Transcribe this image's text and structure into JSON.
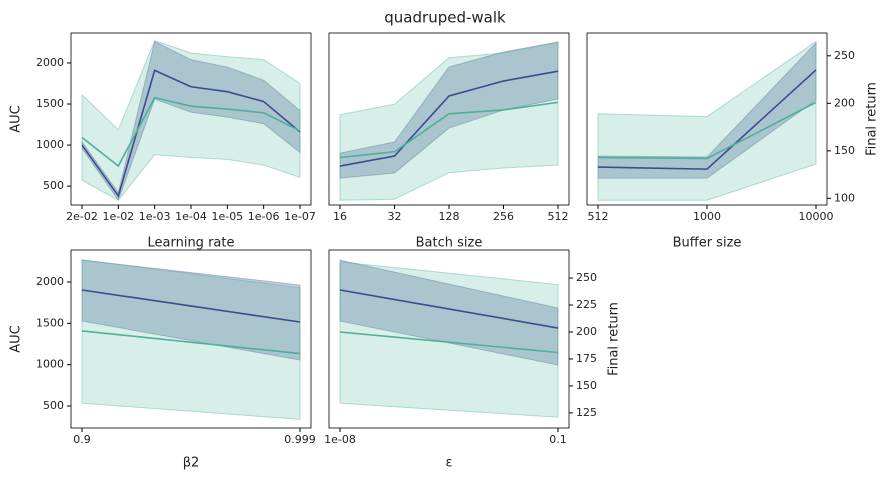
{
  "title": "quadruped-walk",
  "chart_data": [
    {
      "type": "line",
      "xlabel": "Learning rate",
      "ylabel": "AUC",
      "categories": [
        "2e-02",
        "1e-02",
        "1e-03",
        "1e-04",
        "1e-05",
        "1e-06",
        "1e-07"
      ],
      "ylim": [
        270,
        2365
      ],
      "yticks": [
        500,
        1000,
        1500,
        2000
      ],
      "y2lim": [
        93,
        274
      ],
      "series": [
        {
          "color": "#3e4a8f",
          "band_color": "#5a6a9a",
          "values": [
            1000,
            380,
            1910,
            1710,
            1650,
            1530,
            1160
          ],
          "lower": [
            960,
            330,
            1560,
            1400,
            1340,
            1260,
            910
          ],
          "upper": [
            1040,
            420,
            2260,
            2040,
            1950,
            1790,
            1420
          ]
        },
        {
          "axis": "y2",
          "color": "#4cb09a",
          "band_color": "#4cb09a",
          "values": [
            164,
            134,
            206,
            197,
            194,
            190,
            171
          ],
          "lower": [
            119,
            98,
            146,
            143,
            141,
            135,
            122
          ],
          "upper": [
            209,
            172,
            266,
            253,
            249,
            246,
            221
          ]
        }
      ]
    },
    {
      "type": "line",
      "xlabel": "Batch size",
      "categories": [
        "16",
        "32",
        "128",
        "256",
        "512"
      ],
      "ylim": [
        270,
        2365
      ],
      "y2lim": [
        93,
        274
      ],
      "series": [
        {
          "color": "#3e4a8f",
          "band_color": "#5a6a9a",
          "values": [
            744,
            866,
            1598,
            1780,
            1900
          ],
          "lower": [
            598,
            659,
            1207,
            1427,
            1561
          ],
          "upper": [
            902,
            1037,
            1951,
            2134,
            2256
          ]
        },
        {
          "axis": "y2",
          "color": "#4cb09a",
          "band_color": "#4cb09a",
          "values": [
            143,
            149,
            189,
            193,
            201
          ],
          "lower": [
            98,
            99,
            127,
            132,
            135
          ],
          "upper": [
            188,
            199,
            248,
            253,
            264
          ]
        }
      ]
    },
    {
      "type": "line",
      "xlabel": "Buffer size",
      "y2label": "Final return",
      "categories": [
        "512",
        "1000",
        "10000"
      ],
      "ylim": [
        270,
        2365
      ],
      "y2lim": [
        93,
        274
      ],
      "y2ticks": [
        100,
        150,
        200,
        250
      ],
      "series": [
        {
          "color": "#3e4a8f",
          "band_color": "#5a6a9a",
          "values": [
            732,
            707,
            1915
          ],
          "lower": [
            598,
            598,
            1549
          ],
          "upper": [
            866,
            854,
            2244
          ]
        },
        {
          "axis": "y2",
          "color": "#4cb09a",
          "band_color": "#4cb09a",
          "values": [
            143,
            142,
            201
          ],
          "lower": [
            98,
            98,
            136
          ],
          "upper": [
            189,
            186,
            265
          ]
        }
      ]
    },
    {
      "type": "line",
      "xlabel": "β2",
      "ylabel": "AUC",
      "categories": [
        "0.9",
        "0.999"
      ],
      "ylim": [
        234,
        2387
      ],
      "yticks": [
        500,
        1000,
        1500,
        2000
      ],
      "y2lim": [
        111,
        276
      ],
      "series": [
        {
          "color": "#3e4a8f",
          "band_color": "#5a6a9a",
          "values": [
            1903,
            1516
          ],
          "lower": [
            1528,
            1056
          ],
          "upper": [
            2265,
            1963
          ]
        },
        {
          "axis": "y2",
          "color": "#4cb09a",
          "band_color": "#4cb09a",
          "values": [
            201,
            180
          ],
          "lower": [
            134,
            119
          ],
          "upper": [
            267,
            241
          ]
        }
      ]
    },
    {
      "type": "line",
      "xlabel": "ε",
      "y2label": "Final return",
      "categories": [
        "1e-08",
        "0.1"
      ],
      "ylim": [
        234,
        2387
      ],
      "y2lim": [
        111,
        276
      ],
      "y2ticks": [
        125,
        150,
        175,
        200,
        225,
        250
      ],
      "series": [
        {
          "color": "#3e4a8f",
          "band_color": "#5a6a9a",
          "values": [
            1903,
            1443
          ],
          "lower": [
            1528,
            996
          ],
          "upper": [
            2265,
            1685
          ]
        },
        {
          "axis": "y2",
          "color": "#4cb09a",
          "band_color": "#4cb09a",
          "values": [
            200,
            181
          ],
          "lower": [
            134,
            121
          ],
          "upper": [
            265,
            244
          ]
        }
      ]
    }
  ]
}
